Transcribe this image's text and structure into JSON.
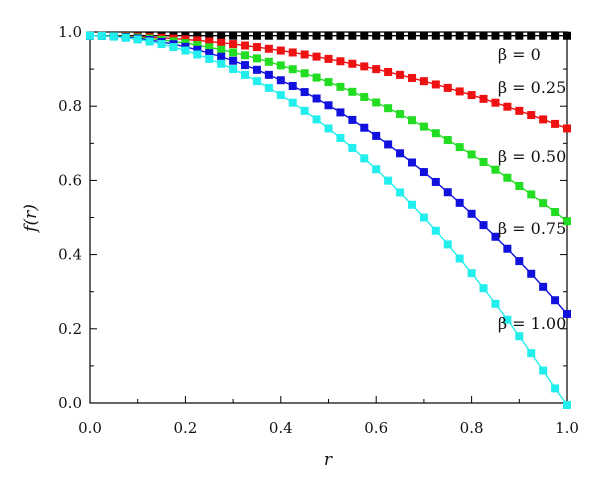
{
  "chart_data": {
    "type": "scatter",
    "xlabel": "r",
    "ylabel": "f(r)",
    "xlim": [
      0.0,
      1.0
    ],
    "ylim": [
      0.0,
      1.0
    ],
    "xticks": [
      0.0,
      0.2,
      0.4,
      0.6,
      0.8,
      1.0
    ],
    "yticks": [
      0.0,
      0.2,
      0.4,
      0.6,
      0.8,
      1.0
    ],
    "tick_labels_x": [
      "0.0",
      "0.2",
      "0.4",
      "0.6",
      "0.8",
      "1.0"
    ],
    "tick_labels_y": [
      "0.0",
      "0.2",
      "0.4",
      "0.6",
      "0.8",
      "1.0"
    ],
    "grid": false,
    "legend": "inline labels at right end of curves",
    "marker": "square",
    "x": [
      0.0,
      0.025,
      0.05,
      0.075,
      0.1,
      0.125,
      0.15,
      0.175,
      0.2,
      0.225,
      0.25,
      0.275,
      0.3,
      0.325,
      0.35,
      0.375,
      0.4,
      0.425,
      0.45,
      0.475,
      0.5,
      0.525,
      0.55,
      0.575,
      0.6,
      0.625,
      0.65,
      0.675,
      0.7,
      0.725,
      0.75,
      0.775,
      0.8,
      0.825,
      0.85,
      0.875,
      0.9,
      0.925,
      0.95,
      0.975,
      1.0
    ],
    "series": [
      {
        "name": "β = 0",
        "label": "β = 0",
        "color": "#000000",
        "values": [
          0.99,
          0.99,
          0.99,
          0.99,
          0.99,
          0.99,
          0.99,
          0.99,
          0.99,
          0.99,
          0.99,
          0.99,
          0.99,
          0.99,
          0.99,
          0.99,
          0.99,
          0.99,
          0.99,
          0.99,
          0.99,
          0.99,
          0.99,
          0.99,
          0.99,
          0.99,
          0.99,
          0.99,
          0.99,
          0.99,
          0.99,
          0.99,
          0.99,
          0.99,
          0.99,
          0.99,
          0.99,
          0.99,
          0.99,
          0.99,
          0.99
        ]
      },
      {
        "name": "β = 0.25",
        "label": "β = 0.25",
        "color": "#ee1111",
        "values": [
          0.99,
          0.9898,
          0.9894,
          0.9886,
          0.9875,
          0.9861,
          0.9844,
          0.9823,
          0.98,
          0.9773,
          0.9744,
          0.9711,
          0.9675,
          0.9636,
          0.9594,
          0.9548,
          0.95,
          0.9448,
          0.9394,
          0.9336,
          0.9275,
          0.9211,
          0.9144,
          0.9073,
          0.9,
          0.8923,
          0.8844,
          0.8761,
          0.8675,
          0.8586,
          0.8494,
          0.8398,
          0.83,
          0.8198,
          0.8094,
          0.7986,
          0.7875,
          0.7761,
          0.7644,
          0.7523,
          0.74
        ]
      },
      {
        "name": "β = 0.50",
        "label": "β = 0.50",
        "color": "#22dd22",
        "values": [
          0.99,
          0.9897,
          0.9888,
          0.9872,
          0.985,
          0.9822,
          0.9788,
          0.9747,
          0.97,
          0.9647,
          0.9588,
          0.9522,
          0.945,
          0.9372,
          0.9288,
          0.9197,
          0.91,
          0.8997,
          0.8888,
          0.8772,
          0.865,
          0.8522,
          0.8388,
          0.8247,
          0.81,
          0.7947,
          0.7788,
          0.7622,
          0.745,
          0.7272,
          0.7088,
          0.6897,
          0.67,
          0.6497,
          0.6288,
          0.6072,
          0.585,
          0.5622,
          0.5388,
          0.5147,
          0.49
        ]
      },
      {
        "name": "β = 0.75",
        "label": "β = 0.75",
        "color": "#1111dd",
        "values": [
          0.99,
          0.9895,
          0.9881,
          0.9858,
          0.9825,
          0.9783,
          0.9731,
          0.967,
          0.96,
          0.952,
          0.9431,
          0.9333,
          0.9225,
          0.9108,
          0.8981,
          0.8845,
          0.87,
          0.8545,
          0.8381,
          0.8208,
          0.8025,
          0.7833,
          0.7631,
          0.742,
          0.72,
          0.697,
          0.6731,
          0.6483,
          0.6225,
          0.5958,
          0.5681,
          0.5395,
          0.51,
          0.4795,
          0.4481,
          0.4158,
          0.3825,
          0.3483,
          0.3131,
          0.277,
          0.24
        ]
      },
      {
        "name": "β = 1.00",
        "label": "β = 1.00",
        "color": "#22eeee",
        "values": [
          0.99,
          0.9894,
          0.9875,
          0.9844,
          0.98,
          0.9744,
          0.9675,
          0.9594,
          0.95,
          0.9394,
          0.9275,
          0.9144,
          0.9,
          0.8844,
          0.8675,
          0.8494,
          0.83,
          0.8094,
          0.7875,
          0.7644,
          0.74,
          0.7144,
          0.6875,
          0.6594,
          0.63,
          0.5994,
          0.5675,
          0.5344,
          0.5,
          0.4644,
          0.4275,
          0.3894,
          0.35,
          0.3094,
          0.2675,
          0.2244,
          0.18,
          0.1344,
          0.0875,
          0.0394,
          -0.01
        ]
      }
    ]
  }
}
